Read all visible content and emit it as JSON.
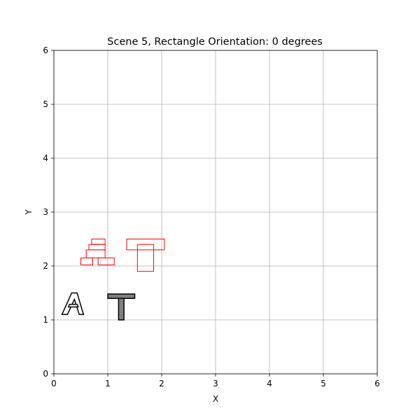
{
  "chart_data": {
    "type": "scatter",
    "title": "Scene 5, Rectangle Orientation: 0 degrees",
    "xlabel": "X",
    "ylabel": "Y",
    "xlim": [
      0,
      6
    ],
    "ylim": [
      0,
      6
    ],
    "xticks": [
      "0",
      "1",
      "2",
      "3",
      "4",
      "5",
      "6"
    ],
    "yticks": [
      "0",
      "1",
      "2",
      "3",
      "4",
      "5",
      "6"
    ],
    "grid": true,
    "letters": [
      {
        "glyph": "A",
        "fill": "#ffffff",
        "stroke": "#000000",
        "polygons": [
          [
            [
              0.15,
              1.1
            ],
            [
              0.33,
              1.5
            ],
            [
              0.43,
              1.5
            ],
            [
              0.55,
              1.1
            ],
            [
              0.47,
              1.1
            ],
            [
              0.38,
              1.38
            ],
            [
              0.25,
              1.1
            ]
          ],
          [
            [
              0.27,
              1.24
            ],
            [
              0.45,
              1.24
            ],
            [
              0.43,
              1.29
            ],
            [
              0.29,
              1.29
            ]
          ]
        ]
      },
      {
        "glyph": "T",
        "fill": "#808080",
        "stroke": "#000000",
        "polygons": [
          [
            [
              1.0,
              1.4
            ],
            [
              1.5,
              1.4
            ],
            [
              1.5,
              1.48
            ],
            [
              1.0,
              1.48
            ]
          ],
          [
            [
              1.2,
              1.0
            ],
            [
              1.3,
              1.0
            ],
            [
              1.3,
              1.4
            ],
            [
              1.2,
              1.4
            ]
          ]
        ]
      }
    ],
    "rectangles": {
      "color": "#ff0000",
      "orientation_degrees": 0,
      "boxes": [
        [
          0.7,
          2.4,
          0.95,
          2.5
        ],
        [
          0.65,
          2.3,
          0.95,
          2.4
        ],
        [
          0.6,
          2.15,
          0.95,
          2.3
        ],
        [
          0.5,
          2.02,
          0.72,
          2.15
        ],
        [
          0.82,
          2.02,
          1.12,
          2.15
        ],
        [
          1.35,
          2.3,
          2.05,
          2.5
        ],
        [
          1.55,
          1.9,
          1.85,
          2.4
        ]
      ]
    }
  }
}
